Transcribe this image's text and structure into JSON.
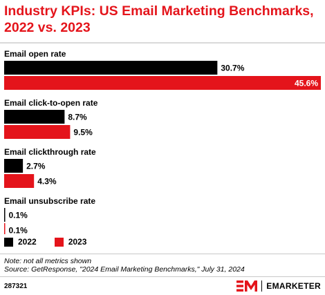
{
  "title": "Industry KPIs: US Email Marketing Benchmarks, 2022 vs. 2023",
  "chart_data": {
    "type": "bar",
    "orientation": "horizontal",
    "categories": [
      "Email open rate",
      "Email click-to-open rate",
      "Email clickthrough rate",
      "Email unsubscribe rate"
    ],
    "series": [
      {
        "name": "2022",
        "color": "#000000",
        "values": [
          30.7,
          8.7,
          2.7,
          0.1
        ],
        "labels": [
          "30.7%",
          "8.7%",
          "2.7%",
          "0.1%"
        ]
      },
      {
        "name": "2023",
        "color": "#e4141b",
        "values": [
          45.6,
          9.5,
          4.3,
          0.1
        ],
        "labels": [
          "45.6%",
          "9.5%",
          "4.3%",
          "0.1%"
        ]
      }
    ],
    "xlim": [
      0,
      45.6
    ],
    "grid": false,
    "legend_position": "bottom-left"
  },
  "legend": [
    {
      "label": "2022",
      "color": "#000000"
    },
    {
      "label": "2023",
      "color": "#e4141b"
    }
  ],
  "note": "Note: not all metrics shown",
  "source": "Source: GetResponse, \"2024 Email Marketing Benchmarks,\" July 31, 2024",
  "chart_id": "287321",
  "brand": {
    "name": "EMARKETER",
    "mark": "EM",
    "color": "#e4141b"
  }
}
